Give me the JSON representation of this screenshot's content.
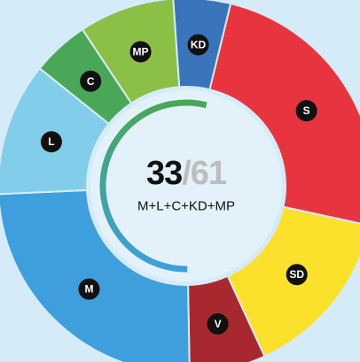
{
  "chart_data": {
    "type": "donut",
    "categories": [
      "KD",
      "S",
      "SD",
      "V",
      "M",
      "L",
      "C",
      "MP"
    ],
    "values": [
      3,
      15,
      9,
      4,
      15,
      7,
      3,
      5
    ],
    "colors": [
      "#3a74ba",
      "#e8343e",
      "#fce12c",
      "#a8282f",
      "#3f9fdc",
      "#82cdea",
      "#4aa757",
      "#8bbf46"
    ],
    "count": 33,
    "separator": "/",
    "total": 61,
    "subtitle": "M+L+C+KD+MP"
  }
}
